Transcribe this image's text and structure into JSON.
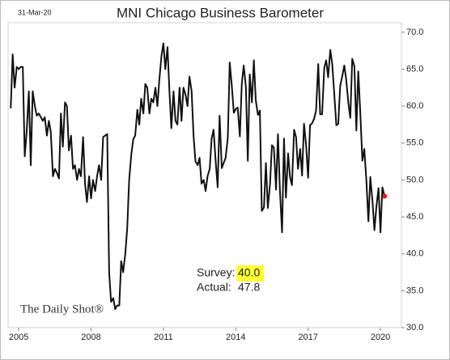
{
  "chart_data": {
    "type": "line",
    "title": "MNI Chicago Business Barometer",
    "date": "31-Mar-20",
    "source": "The Daily Shot®",
    "survey_label": "Survey:",
    "survey_value": "40.0",
    "actual_label": "Actual:",
    "actual_value": "47.8",
    "xlim": [
      2004.56,
      2020.87
    ],
    "xticks": [
      2005,
      2008,
      2011,
      2014,
      2017,
      2020
    ],
    "ylim": [
      30,
      71.3
    ],
    "yticks": [
      {
        "value": 30,
        "label": "30.0"
      },
      {
        "value": 35,
        "label": "35.0"
      },
      {
        "value": 40,
        "label": "40.0"
      },
      {
        "value": 45,
        "label": "45.0"
      },
      {
        "value": 50,
        "label": "50.0"
      },
      {
        "value": 55,
        "label": "55.0"
      },
      {
        "value": 60,
        "label": "60.0"
      },
      {
        "value": 65,
        "label": "65.0"
      },
      {
        "value": 70,
        "label": "70.0"
      }
    ],
    "end_marker_color": "#e8141b",
    "x": [
      2004.67,
      2004.75,
      2004.83,
      2004.92,
      2005.0,
      2005.08,
      2005.17,
      2005.25,
      2005.33,
      2005.42,
      2005.5,
      2005.58,
      2005.67,
      2005.75,
      2005.83,
      2005.92,
      2006.0,
      2006.08,
      2006.17,
      2006.25,
      2006.33,
      2006.42,
      2006.5,
      2006.58,
      2006.67,
      2006.75,
      2006.83,
      2006.92,
      2007.0,
      2007.08,
      2007.17,
      2007.25,
      2007.33,
      2007.42,
      2007.5,
      2007.58,
      2007.67,
      2007.75,
      2007.83,
      2007.92,
      2008.0,
      2008.08,
      2008.17,
      2008.25,
      2008.33,
      2008.42,
      2008.5,
      2008.58,
      2008.67,
      2008.75,
      2008.83,
      2008.92,
      2009.0,
      2009.08,
      2009.17,
      2009.25,
      2009.33,
      2009.42,
      2009.5,
      2009.58,
      2009.67,
      2009.75,
      2009.83,
      2009.92,
      2010.0,
      2010.08,
      2010.17,
      2010.25,
      2010.33,
      2010.42,
      2010.5,
      2010.58,
      2010.67,
      2010.75,
      2010.83,
      2010.92,
      2011.0,
      2011.08,
      2011.17,
      2011.25,
      2011.33,
      2011.42,
      2011.5,
      2011.58,
      2011.67,
      2011.75,
      2011.83,
      2011.92,
      2012.0,
      2012.08,
      2012.17,
      2012.25,
      2012.33,
      2012.42,
      2012.5,
      2012.58,
      2012.67,
      2012.75,
      2012.83,
      2012.92,
      2013.0,
      2013.08,
      2013.17,
      2013.25,
      2013.33,
      2013.42,
      2013.5,
      2013.58,
      2013.67,
      2013.75,
      2013.83,
      2013.92,
      2014.0,
      2014.08,
      2014.17,
      2014.25,
      2014.33,
      2014.42,
      2014.5,
      2014.58,
      2014.67,
      2014.75,
      2014.83,
      2014.92,
      2015.0,
      2015.08,
      2015.17,
      2015.25,
      2015.33,
      2015.42,
      2015.5,
      2015.58,
      2015.67,
      2015.75,
      2015.83,
      2015.92,
      2016.0,
      2016.08,
      2016.17,
      2016.25,
      2016.33,
      2016.42,
      2016.5,
      2016.58,
      2016.67,
      2016.75,
      2016.83,
      2016.92,
      2017.0,
      2017.08,
      2017.17,
      2017.25,
      2017.33,
      2017.42,
      2017.5,
      2017.58,
      2017.67,
      2017.75,
      2017.83,
      2017.92,
      2018.0,
      2018.08,
      2018.17,
      2018.25,
      2018.33,
      2018.42,
      2018.5,
      2018.58,
      2018.67,
      2018.75,
      2018.83,
      2018.92,
      2019.0,
      2019.08,
      2019.17,
      2019.25,
      2019.33,
      2019.42,
      2019.5,
      2019.58,
      2019.67,
      2019.75,
      2019.83,
      2019.92,
      2020.0,
      2020.08,
      2020.17
    ],
    "series": [
      {
        "name": "MNI Chicago Business Barometer",
        "color": "#111111",
        "values": [
          59.7,
          67.0,
          62.5,
          65.3,
          65.0,
          65.3,
          65.3,
          53.2,
          56.5,
          62.0,
          52.0,
          62.0,
          60.0,
          58.7,
          59.0,
          58.5,
          58.0,
          58.5,
          56.0,
          58.0,
          56.5,
          50.5,
          51.5,
          51.0,
          50.2,
          59.0,
          54.5,
          60.5,
          60.0,
          54.0,
          56.0,
          51.5,
          52.0,
          50.0,
          51.5,
          50.5,
          55.8,
          49.5,
          47.0,
          50.5,
          47.5,
          50.0,
          48.5,
          50.5,
          52.0,
          50.0,
          55.8,
          56.0,
          56.2,
          37.5,
          33.5,
          34.0,
          32.5,
          33.0,
          33.0,
          39.0,
          37.5,
          40.0,
          43.5,
          50.0,
          53.5,
          55.5,
          56.0,
          59.5,
          57.5,
          61.0,
          59.0,
          63.0,
          62.5,
          59.0,
          61.0,
          60.5,
          62.5,
          60.0,
          63.5,
          66.8,
          68.5,
          65.0,
          68.0,
          62.0,
          57.0,
          62.0,
          58.0,
          57.5,
          62.5,
          58.0,
          62.5,
          61.5,
          60.0,
          64.0,
          62.0,
          56.0,
          52.5,
          52.0,
          53.0,
          49.5,
          50.0,
          48.5,
          50.5,
          51.5,
          55.6,
          56.8,
          52.4,
          49.0,
          58.7,
          51.6,
          52.3,
          53.0,
          55.7,
          65.9,
          63.0,
          59.1,
          59.6,
          59.8,
          55.9,
          63.0,
          65.5,
          62.6,
          52.6,
          64.3,
          60.5,
          66.2,
          60.8,
          58.8,
          59.4,
          45.8,
          46.3,
          52.3,
          46.2,
          49.4,
          54.7,
          54.4,
          48.7,
          56.2,
          48.7,
          42.9,
          55.6,
          47.6,
          53.6,
          50.4,
          49.3,
          56.8,
          55.8,
          51.5,
          54.2,
          50.6,
          57.6,
          54.6,
          50.3,
          57.4,
          57.7,
          58.3,
          59.4,
          65.7,
          58.9,
          58.9,
          65.2,
          66.2,
          63.9,
          67.6,
          65.7,
          61.9,
          57.4,
          57.6,
          62.7,
          64.1,
          65.5,
          63.6,
          60.4,
          58.4,
          66.4,
          65.4,
          56.7,
          64.7,
          58.7,
          52.6,
          54.2,
          49.7,
          44.4,
          50.4,
          47.1,
          43.2,
          46.3,
          48.9,
          42.9,
          49.0,
          47.8
        ]
      }
    ]
  }
}
